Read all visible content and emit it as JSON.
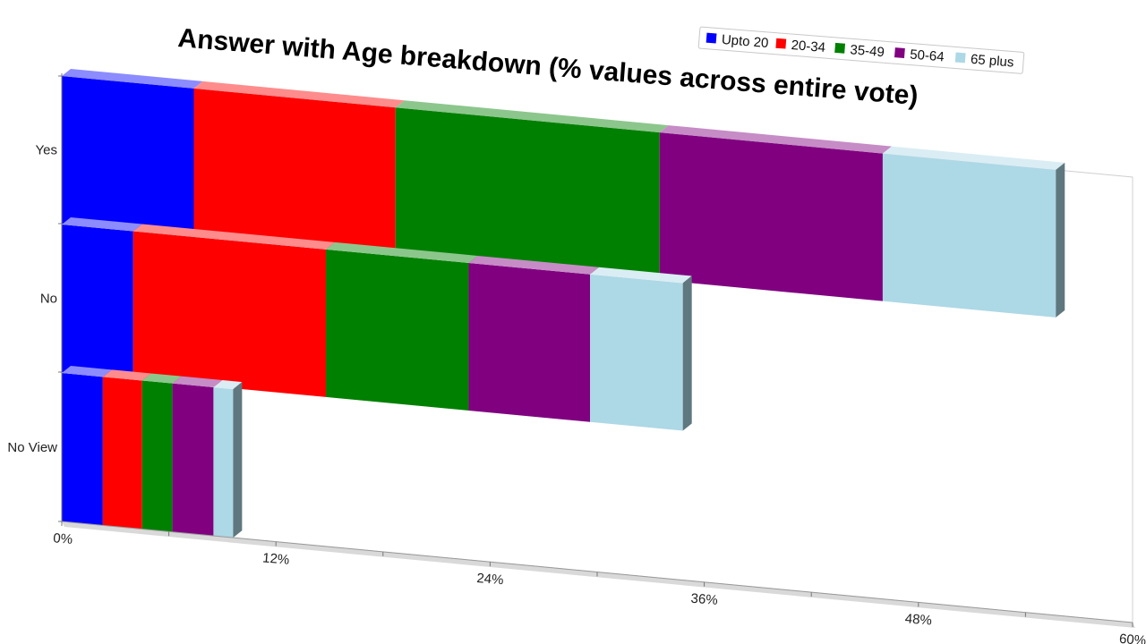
{
  "chart_data": {
    "type": "bar",
    "orientation": "horizontal",
    "stacked": true,
    "title": "Answer with Age breakdown (% values across entire vote)",
    "categories": [
      "Yes",
      "No",
      "No View"
    ],
    "series": [
      {
        "name": "Upto 20",
        "color": "#0000ff",
        "values": [
          7.4,
          4.0,
          2.3
        ]
      },
      {
        "name": "20-34",
        "color": "#ff0000",
        "values": [
          11.3,
          10.8,
          2.2
        ]
      },
      {
        "name": "35-49",
        "color": "#008000",
        "values": [
          14.8,
          8.0,
          1.7
        ]
      },
      {
        "name": "50-64",
        "color": "#800080",
        "values": [
          12.5,
          6.8,
          2.3
        ]
      },
      {
        "name": "65 plus",
        "color": "#add8e6",
        "values": [
          9.7,
          5.2,
          1.1
        ]
      }
    ],
    "xaxis": {
      "range": [
        0,
        60
      ],
      "tick_labels": [
        "0%",
        "12%",
        "24%",
        "36%",
        "48%",
        "60%"
      ]
    },
    "legend_position": "top-right",
    "grid": false
  }
}
